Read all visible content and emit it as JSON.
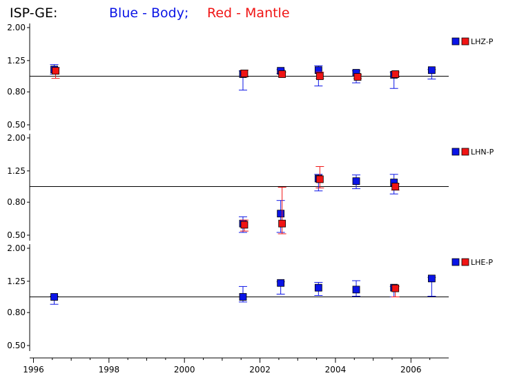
{
  "header": {
    "station": "ISP-GE:",
    "blue_label": "Blue - Body;",
    "red_label": "Red - Mantle"
  },
  "colors": {
    "body": "#0a14e6",
    "mantle": "#f01414",
    "axis": "#000000"
  },
  "chart_data": [
    {
      "type": "scatter",
      "component": "LHZ-P",
      "legend": "LHZ-P",
      "reference_line": 1.0,
      "yscale": "log",
      "ylim": [
        0.45,
        2.05
      ],
      "yticks": [
        "2.00",
        "1.25",
        "0.80",
        "0.50"
      ],
      "series": [
        {
          "name": "Body",
          "color": "#0a14e6",
          "points": [
            {
              "x": 1996.55,
              "y": 1.1,
              "lo": 1.03,
              "hi": 1.18
            },
            {
              "x": 2001.55,
              "y": 1.03,
              "lo": 0.82,
              "hi": 1.08
            },
            {
              "x": 2002.55,
              "y": 1.08,
              "lo": 1.04,
              "hi": 1.1
            },
            {
              "x": 2003.55,
              "y": 1.09,
              "lo": 0.87,
              "hi": 1.16
            },
            {
              "x": 2004.55,
              "y": 1.05,
              "lo": 0.91,
              "hi": 1.08
            },
            {
              "x": 2005.55,
              "y": 1.02,
              "lo": 0.84,
              "hi": 1.06
            },
            {
              "x": 2006.55,
              "y": 1.09,
              "lo": 0.96,
              "hi": 1.1
            }
          ]
        },
        {
          "name": "Mantle",
          "color": "#f01414",
          "points": [
            {
              "x": 1996.55,
              "y": 1.08,
              "lo": 0.97,
              "hi": 1.13
            },
            {
              "x": 2001.55,
              "y": 1.04,
              "lo": 0.99,
              "hi": 1.09
            },
            {
              "x": 2002.55,
              "y": 1.03,
              "lo": 1.0,
              "hi": 1.06
            },
            {
              "x": 2003.55,
              "y": 1.0,
              "lo": 0.97,
              "hi": 1.06
            },
            {
              "x": 2004.55,
              "y": 0.99,
              "lo": 0.97,
              "hi": 1.02
            },
            {
              "x": 2005.55,
              "y": 1.03,
              "lo": 0.99,
              "hi": 1.06
            }
          ]
        }
      ]
    },
    {
      "type": "scatter",
      "component": "LHN-P",
      "legend": "LHN-P",
      "reference_line": 1.0,
      "yscale": "log",
      "ylim": [
        0.45,
        2.05
      ],
      "yticks": [
        "2.00",
        "1.25",
        "0.80",
        "0.50"
      ],
      "series": [
        {
          "name": "Body",
          "color": "#0a14e6",
          "points": [
            {
              "x": 2001.55,
              "y": 0.59,
              "lo": 0.52,
              "hi": 0.65
            },
            {
              "x": 2002.55,
              "y": 0.68,
              "lo": 0.52,
              "hi": 0.82
            },
            {
              "x": 2003.55,
              "y": 1.12,
              "lo": 0.94,
              "hi": 1.19
            },
            {
              "x": 2004.55,
              "y": 1.08,
              "lo": 0.97,
              "hi": 1.18
            },
            {
              "x": 2005.55,
              "y": 1.06,
              "lo": 0.9,
              "hi": 1.19
            }
          ]
        },
        {
          "name": "Mantle",
          "color": "#f01414",
          "points": [
            {
              "x": 2001.55,
              "y": 0.58,
              "lo": 0.53,
              "hi": 0.62
            },
            {
              "x": 2002.55,
              "y": 0.59,
              "lo": 0.51,
              "hi": 0.99
            },
            {
              "x": 2003.55,
              "y": 1.11,
              "lo": 0.98,
              "hi": 1.33
            },
            {
              "x": 2005.55,
              "y": 1.0,
              "lo": 0.95,
              "hi": 1.04
            }
          ]
        }
      ]
    },
    {
      "type": "scatter",
      "component": "LHE-P",
      "legend": "LHE-P",
      "reference_line": 1.0,
      "yscale": "log",
      "ylim": [
        0.45,
        2.05
      ],
      "yticks": [
        "2.00",
        "1.25",
        "0.80",
        "0.50"
      ],
      "series": [
        {
          "name": "Body",
          "color": "#0a14e6",
          "points": [
            {
              "x": 1996.55,
              "y": 1.0,
              "lo": 0.9,
              "hi": 1.01
            },
            {
              "x": 2001.55,
              "y": 1.0,
              "lo": 0.93,
              "hi": 1.16
            },
            {
              "x": 2002.55,
              "y": 1.22,
              "lo": 1.04,
              "hi": 1.24
            },
            {
              "x": 2003.55,
              "y": 1.14,
              "lo": 1.02,
              "hi": 1.23
            },
            {
              "x": 2004.55,
              "y": 1.11,
              "lo": 1.01,
              "hi": 1.26
            },
            {
              "x": 2005.55,
              "y": 1.14,
              "lo": 1.0,
              "hi": 1.16
            },
            {
              "x": 2006.55,
              "y": 1.3,
              "lo": 1.01,
              "hi": 1.32
            }
          ]
        },
        {
          "name": "Mantle",
          "color": "#f01414",
          "points": [
            {
              "x": 2005.55,
              "y": 1.13,
              "lo": 1.0,
              "hi": 1.16
            }
          ]
        }
      ]
    }
  ],
  "xaxis": {
    "range": [
      1995.9,
      2007.0
    ],
    "major_ticks": [
      1996,
      1998,
      2000,
      2002,
      2004,
      2006
    ],
    "minor_ticks": [
      1997,
      1999,
      2001,
      2003,
      2005
    ],
    "labels": [
      "1996",
      "1998",
      "2000",
      "2002",
      "2004",
      "2006"
    ]
  }
}
